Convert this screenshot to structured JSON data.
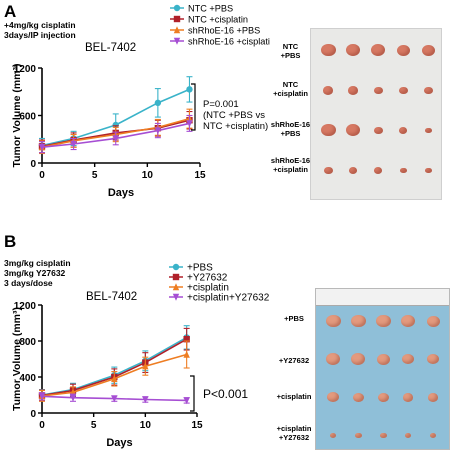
{
  "panelA": {
    "letter": "A",
    "treatment": "+4mg/kg cisplatin\n3days/IP injection",
    "photo_labels": [
      "NTC\n+PBS",
      "NTC\n+cisplatin",
      "shRhoE-16\n+PBS",
      "shRhoE-16\n+cisplatin"
    ]
  },
  "panelB": {
    "letter": "B",
    "treatment": "3mg/kg cisplatin\n3mg/kg Y27632\n3 days/dose",
    "photo_labels": [
      "+PBS",
      "+Y27632",
      "+cisplatin",
      "+cisplatin\n+Y27632"
    ]
  },
  "chart_data": [
    {
      "type": "line",
      "title": "BEL-7402",
      "xlabel": "Days",
      "ylabel": "Tumor Volume (mm³)",
      "xlim": [
        0,
        15
      ],
      "ylim": [
        0,
        1200
      ],
      "xticks": [
        0,
        5,
        10,
        15
      ],
      "yticks": [
        0,
        600,
        1200
      ],
      "x": [
        0,
        3,
        7,
        11,
        14
      ],
      "series": [
        {
          "name": "NTC +PBS",
          "color": "#3ab3c9",
          "marker": "circle",
          "values": [
            220,
            310,
            480,
            760,
            930
          ],
          "errors": [
            90,
            90,
            140,
            180,
            160
          ]
        },
        {
          "name": "NTC +cisplatin",
          "color": "#b0202a",
          "marker": "square",
          "values": [
            210,
            290,
            380,
            440,
            540
          ],
          "errors": [
            80,
            90,
            90,
            100,
            110
          ]
        },
        {
          "name": "shRhoE-16 +PBS",
          "color": "#ee7d22",
          "marker": "triangle-up",
          "values": [
            200,
            280,
            360,
            450,
            560
          ],
          "errors": [
            80,
            80,
            90,
            100,
            120
          ]
        },
        {
          "name": "shRhoE-16 +cisplatin",
          "color": "#a64ed3",
          "marker": "triangle-down",
          "values": [
            200,
            240,
            310,
            410,
            500
          ],
          "errors": [
            70,
            70,
            80,
            90,
            100
          ]
        }
      ],
      "annotation": "P=0.001\n(NTC +PBS vs\nNTC +cisplatin)"
    },
    {
      "type": "line",
      "title": "BEL-7402",
      "xlabel": "Days",
      "ylabel": "Tumor Volume (mm³)",
      "xlim": [
        0,
        15
      ],
      "ylim": [
        0,
        1200
      ],
      "xticks": [
        0,
        5,
        10,
        15
      ],
      "yticks": [
        0,
        400,
        800,
        1200
      ],
      "x": [
        0,
        3,
        7,
        10,
        14
      ],
      "series": [
        {
          "name": "+PBS",
          "color": "#3ab3c9",
          "marker": "circle",
          "values": [
            200,
            260,
            420,
            580,
            840
          ],
          "errors": [
            60,
            70,
            90,
            110,
            130
          ]
        },
        {
          "name": "+Y27632",
          "color": "#b0202a",
          "marker": "square",
          "values": [
            195,
            250,
            400,
            560,
            820
          ],
          "errors": [
            60,
            70,
            90,
            110,
            120
          ]
        },
        {
          "name": "+cisplatin",
          "color": "#ee7d22",
          "marker": "triangle-up",
          "values": [
            190,
            230,
            380,
            520,
            650
          ],
          "errors": [
            60,
            60,
            80,
            100,
            150
          ]
        },
        {
          "name": "+cisplatin+Y27632",
          "color": "#a64ed3",
          "marker": "triangle-down",
          "values": [
            185,
            170,
            160,
            150,
            140
          ],
          "errors": [
            40,
            40,
            30,
            30,
            30
          ]
        }
      ],
      "annotation": "P<0.001"
    }
  ]
}
